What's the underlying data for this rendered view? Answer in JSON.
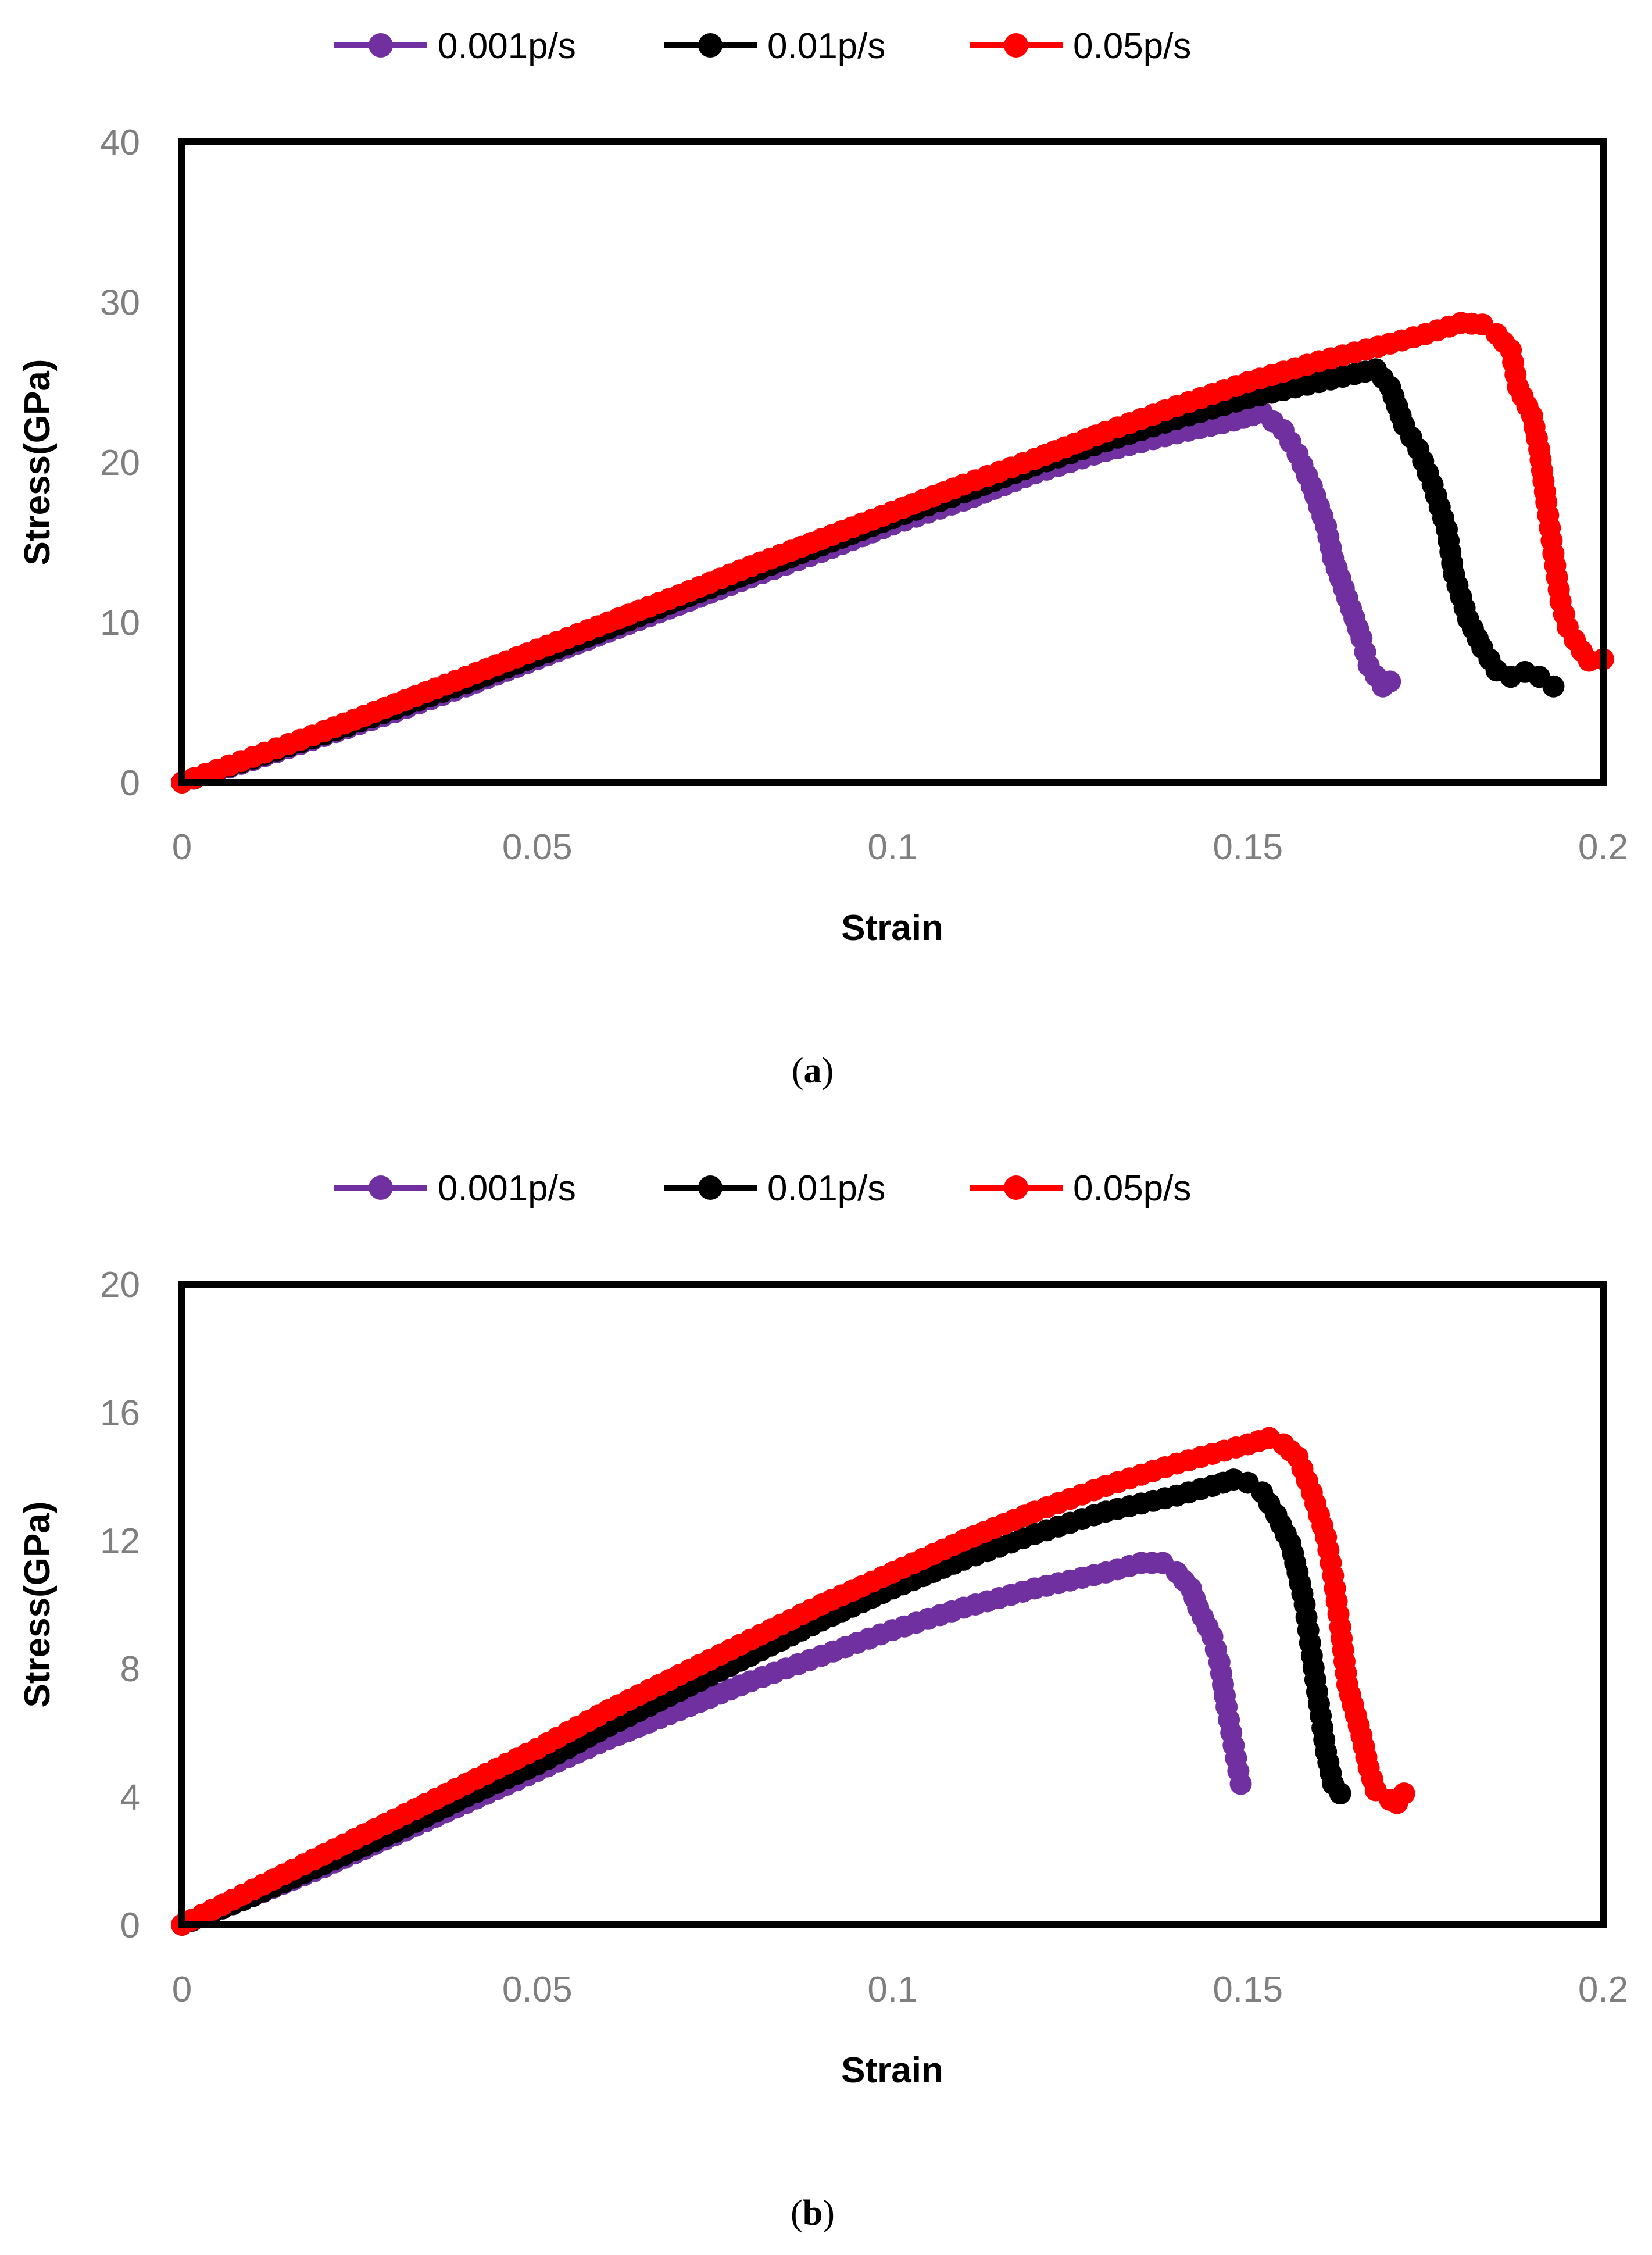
{
  "figure": {
    "captions": [
      {
        "open": "(",
        "letter": "a",
        "close": ")"
      },
      {
        "open": "(",
        "letter": "b",
        "close": ")"
      }
    ]
  },
  "chart_data": [
    {
      "type": "line",
      "panel": "a",
      "title": "",
      "xlabel": "Strain",
      "ylabel": "Stress(GPa)",
      "xlim": [
        0,
        0.2
      ],
      "ylim": [
        0,
        40
      ],
      "x_ticks": [
        0,
        0.05,
        0.1,
        0.15,
        0.2
      ],
      "x_tick_labels": [
        "0",
        "0.05",
        "0.1",
        "0.15",
        "0.2"
      ],
      "y_ticks": [
        0,
        10,
        20,
        30,
        40
      ],
      "y_tick_labels": [
        "0",
        "10",
        "20",
        "30",
        "40"
      ],
      "grid": false,
      "legend_position": "top-center",
      "series": [
        {
          "name": "0.001p/s",
          "color": "#7030a0",
          "x": [
            0,
            0.01,
            0.02,
            0.03,
            0.04,
            0.05,
            0.06,
            0.07,
            0.08,
            0.09,
            0.1,
            0.11,
            0.12,
            0.13,
            0.14,
            0.148,
            0.152,
            0.155,
            0.157,
            0.159,
            0.161,
            0.162,
            0.164,
            0.166,
            0.167,
            0.169,
            0.17
          ],
          "y": [
            0,
            1.4,
            2.9,
            4.4,
            6.0,
            7.7,
            9.4,
            11.1,
            12.8,
            14.4,
            16.1,
            17.6,
            19.3,
            20.7,
            21.8,
            22.6,
            23.1,
            22.0,
            20.5,
            18.5,
            16.0,
            14.0,
            11.5,
            9.0,
            7.3,
            6.0,
            6.3
          ]
        },
        {
          "name": "0.01p/s",
          "color": "#000000",
          "x": [
            0,
            0.01,
            0.02,
            0.03,
            0.04,
            0.05,
            0.06,
            0.07,
            0.08,
            0.09,
            0.1,
            0.11,
            0.12,
            0.13,
            0.14,
            0.15,
            0.16,
            0.165,
            0.168,
            0.17,
            0.172,
            0.174,
            0.176,
            0.178,
            0.179,
            0.181,
            0.183,
            0.185,
            0.187,
            0.189,
            0.191,
            0.193
          ],
          "y": [
            0,
            1.5,
            3.0,
            4.6,
            6.2,
            7.9,
            9.6,
            11.4,
            13.1,
            14.8,
            16.5,
            18.1,
            19.8,
            21.3,
            22.7,
            24.0,
            25.0,
            25.5,
            25.8,
            24.7,
            22.3,
            20.8,
            18.6,
            15.8,
            13.0,
            10.2,
            8.4,
            7.0,
            6.6,
            6.9,
            6.6,
            6.0
          ]
        },
        {
          "name": "0.05p/s",
          "color": "#ff0000",
          "x": [
            0,
            0.01,
            0.02,
            0.03,
            0.04,
            0.05,
            0.06,
            0.07,
            0.08,
            0.09,
            0.1,
            0.11,
            0.12,
            0.13,
            0.14,
            0.15,
            0.16,
            0.17,
            0.175,
            0.18,
            0.183,
            0.185,
            0.187,
            0.188,
            0.19,
            0.191,
            0.192,
            0.193,
            0.194,
            0.195,
            0.196,
            0.197,
            0.198,
            0.2
          ],
          "y": [
            0,
            1.6,
            3.2,
            4.9,
            6.6,
            8.3,
            10.0,
            11.7,
            13.5,
            15.2,
            16.9,
            18.6,
            20.2,
            21.9,
            23.5,
            25.0,
            26.3,
            27.4,
            28.0,
            28.7,
            28.6,
            28.0,
            27.0,
            24.7,
            22.9,
            20.8,
            17.5,
            14.3,
            11.3,
            9.7,
            8.9,
            8.2,
            7.6,
            7.7
          ]
        }
      ]
    },
    {
      "type": "line",
      "panel": "b",
      "title": "",
      "xlabel": "Strain",
      "ylabel": "Stress(GPa)",
      "xlim": [
        0,
        0.2
      ],
      "ylim": [
        0,
        20
      ],
      "x_ticks": [
        0,
        0.05,
        0.1,
        0.15,
        0.2
      ],
      "x_tick_labels": [
        "0",
        "0.05",
        "0.1",
        "0.15",
        "0.2"
      ],
      "y_ticks": [
        0,
        4,
        8,
        12,
        16,
        20
      ],
      "y_tick_labels": [
        "0",
        "4",
        "8",
        "12",
        "16",
        "20"
      ],
      "grid": false,
      "legend_position": "top-center",
      "series": [
        {
          "name": "0.001p/s",
          "color": "#7030a0",
          "x": [
            0,
            0.01,
            0.02,
            0.03,
            0.04,
            0.05,
            0.06,
            0.07,
            0.08,
            0.09,
            0.1,
            0.11,
            0.12,
            0.13,
            0.135,
            0.138,
            0.14,
            0.142,
            0.143,
            0.145,
            0.146,
            0.147,
            0.148,
            0.149
          ],
          "y": [
            0,
            0.9,
            1.8,
            2.8,
            3.8,
            4.8,
            5.8,
            6.7,
            7.6,
            8.4,
            9.2,
            9.9,
            10.5,
            11.0,
            11.3,
            11.3,
            11.0,
            10.5,
            9.9,
            9.0,
            8.2,
            6.8,
            5.6,
            4.4
          ]
        },
        {
          "name": "0.01p/s",
          "color": "#000000",
          "x": [
            0,
            0.01,
            0.02,
            0.03,
            0.04,
            0.05,
            0.06,
            0.07,
            0.08,
            0.09,
            0.1,
            0.11,
            0.12,
            0.13,
            0.14,
            0.145,
            0.148,
            0.15,
            0.152,
            0.154,
            0.156,
            0.157,
            0.158,
            0.159,
            0.16,
            0.161,
            0.162,
            0.163
          ],
          "y": [
            0,
            0.9,
            1.9,
            2.9,
            4.0,
            5.0,
            6.2,
            7.3,
            8.4,
            9.5,
            10.5,
            11.4,
            12.2,
            12.9,
            13.4,
            13.7,
            13.9,
            13.8,
            13.5,
            12.8,
            11.9,
            11.0,
            10.0,
            8.4,
            6.9,
            5.4,
            4.4,
            4.1
          ]
        },
        {
          "name": "0.05p/s",
          "color": "#ff0000",
          "x": [
            0,
            0.01,
            0.02,
            0.03,
            0.04,
            0.05,
            0.06,
            0.07,
            0.08,
            0.09,
            0.1,
            0.11,
            0.12,
            0.13,
            0.14,
            0.15,
            0.153,
            0.155,
            0.157,
            0.159,
            0.161,
            0.162,
            0.163,
            0.164,
            0.166,
            0.167,
            0.168,
            0.17,
            0.171,
            0.172
          ],
          "y": [
            0,
            1.1,
            2.2,
            3.3,
            4.4,
            5.5,
            6.7,
            7.8,
            8.9,
            10.0,
            11.0,
            12.0,
            12.9,
            13.7,
            14.4,
            15.0,
            15.2,
            15.0,
            14.6,
            13.5,
            12.1,
            10.9,
            9.3,
            7.5,
            5.9,
            4.9,
            4.2,
            3.9,
            3.8,
            4.1
          ]
        }
      ]
    }
  ]
}
